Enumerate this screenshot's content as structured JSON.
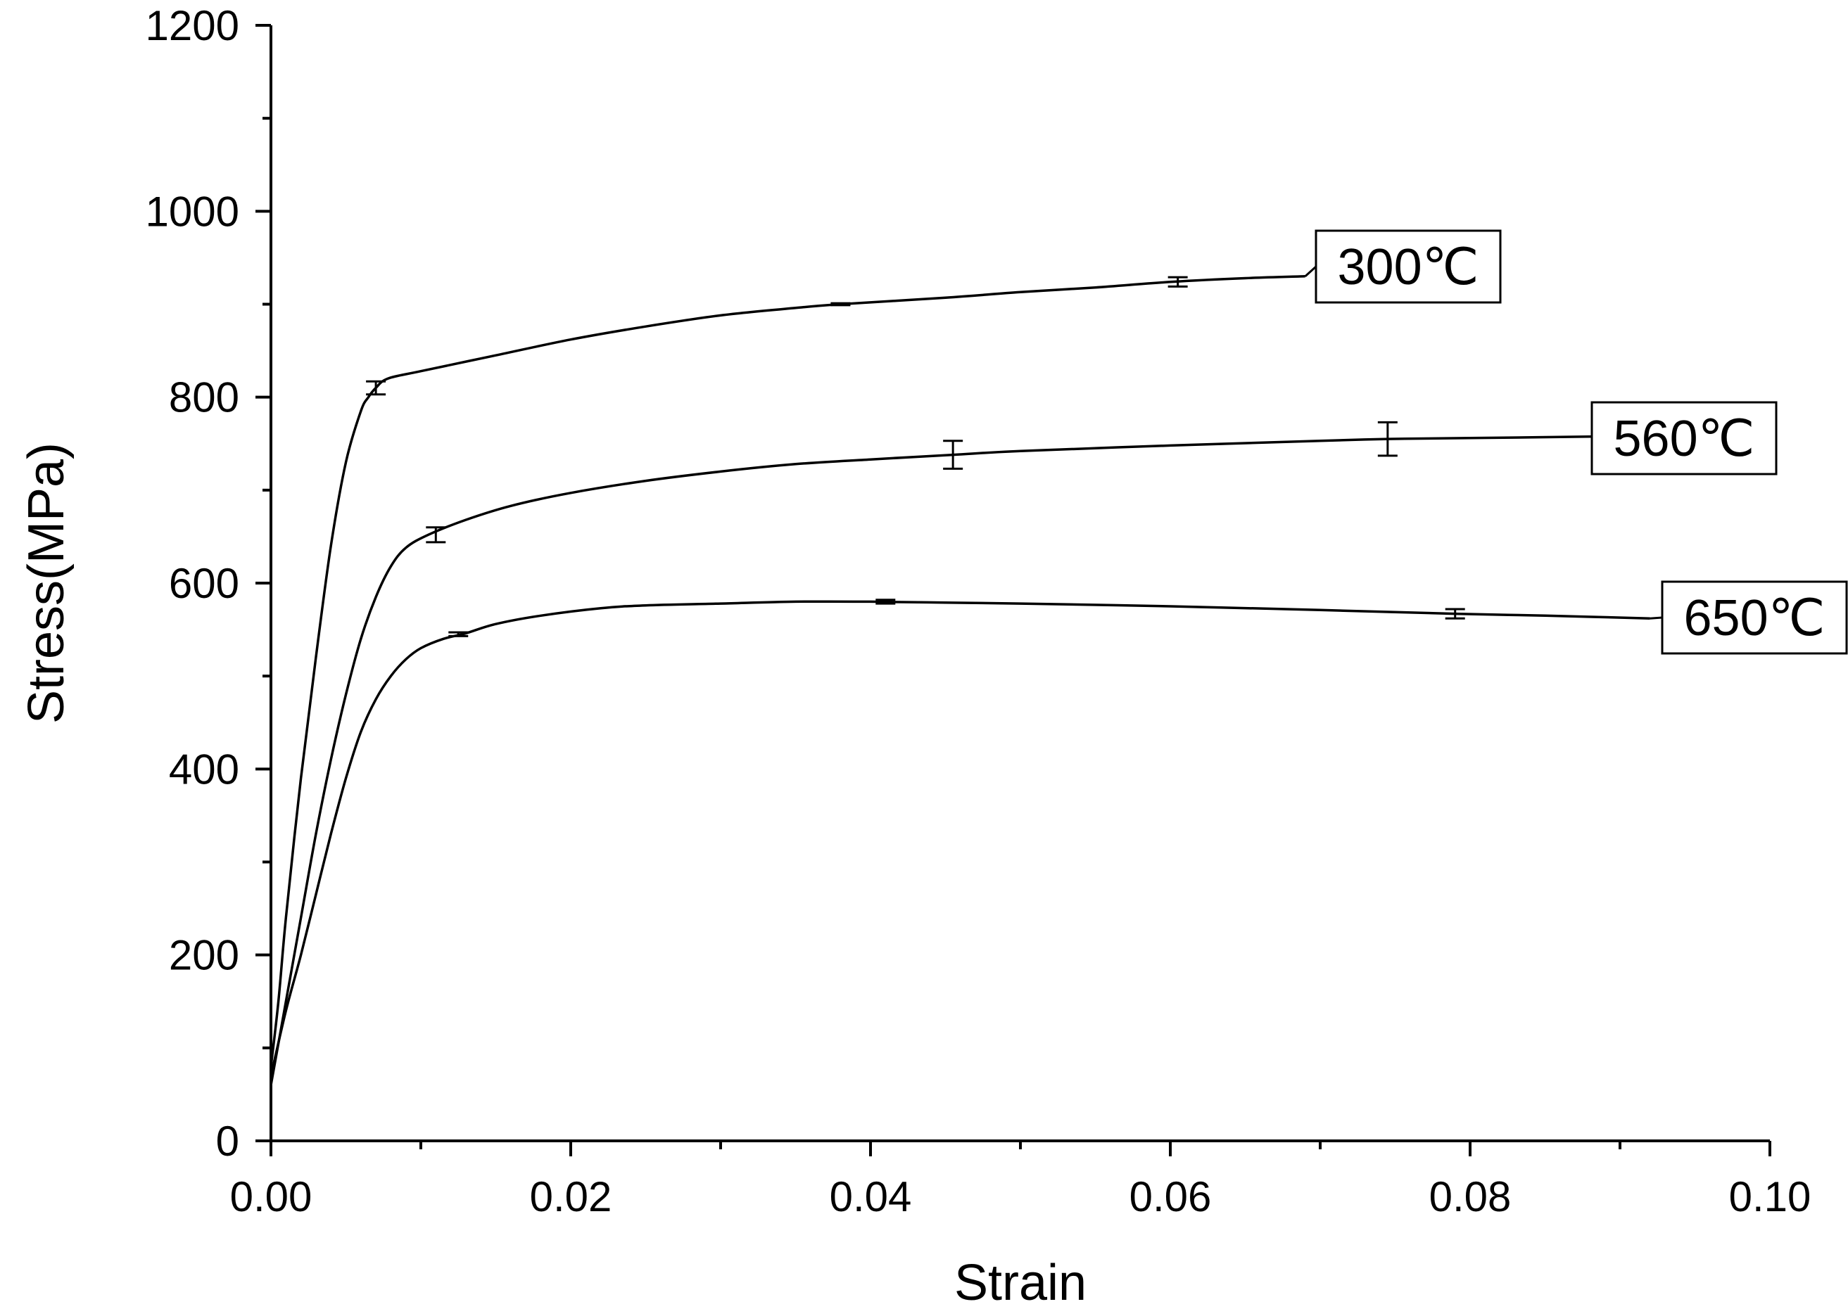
{
  "chart_data": {
    "type": "line",
    "xlabel": "Strain",
    "ylabel": "Stress(MPa)",
    "xlim": [
      0,
      0.1
    ],
    "ylim": [
      0,
      1200
    ],
    "x_ticks": [
      0,
      0.02,
      0.04,
      0.06,
      0.08,
      0.1
    ],
    "x_tick_labels": [
      "0.00",
      "0.02",
      "0.04",
      "0.06",
      "0.08",
      "0.10"
    ],
    "y_ticks": [
      0,
      200,
      400,
      600,
      800,
      1000,
      1200
    ],
    "y_tick_labels": [
      "0",
      "200",
      "400",
      "600",
      "800",
      "1000",
      "1200"
    ],
    "grid": false,
    "legend": "inline-labels",
    "series": [
      {
        "name": "300℃",
        "x": [
          0,
          0.0005,
          0.001,
          0.002,
          0.003,
          0.004,
          0.005,
          0.006,
          0.0065,
          0.007,
          0.0078,
          0.01,
          0.015,
          0.02,
          0.025,
          0.03,
          0.035,
          0.038,
          0.045,
          0.05,
          0.055,
          0.06,
          0.065,
          0.069
        ],
        "y": [
          80,
          150,
          240,
          390,
          520,
          640,
          730,
          785,
          800,
          810,
          820,
          828,
          845,
          862,
          876,
          888,
          896,
          900,
          907,
          913,
          918,
          924,
          928,
          930
        ],
        "error_bars": [
          {
            "x": 0.007,
            "y": 810,
            "err": 7
          },
          {
            "x": 0.038,
            "y": 900,
            "err": 1
          },
          {
            "x": 0.0605,
            "y": 924,
            "err": 5
          }
        ]
      },
      {
        "name": "560℃",
        "x": [
          0,
          0.001,
          0.002,
          0.003,
          0.004,
          0.005,
          0.006,
          0.007,
          0.008,
          0.009,
          0.0105,
          0.013,
          0.016,
          0.02,
          0.025,
          0.03,
          0.035,
          0.04,
          0.0455,
          0.05,
          0.06,
          0.07,
          0.0745,
          0.08,
          0.09
        ],
        "y": [
          60,
          150,
          240,
          330,
          410,
          480,
          540,
          585,
          618,
          638,
          652,
          668,
          683,
          697,
          710,
          720,
          728,
          733,
          738,
          742,
          748,
          753,
          755,
          756,
          758
        ],
        "error_bars": [
          {
            "x": 0.011,
            "y": 652,
            "err": 8
          },
          {
            "x": 0.0455,
            "y": 738,
            "err": 15
          },
          {
            "x": 0.0745,
            "y": 755,
            "err": 18
          }
        ]
      },
      {
        "name": "650℃",
        "x": [
          0,
          0.001,
          0.002,
          0.003,
          0.004,
          0.005,
          0.006,
          0.007,
          0.008,
          0.009,
          0.01,
          0.0115,
          0.013,
          0.015,
          0.018,
          0.022,
          0.025,
          0.03,
          0.035,
          0.04,
          0.045,
          0.05,
          0.06,
          0.07,
          0.079,
          0.085,
          0.092
        ],
        "y": [
          70,
          140,
          200,
          265,
          330,
          390,
          440,
          475,
          500,
          518,
          530,
          540,
          546,
          556,
          565,
          573,
          576,
          578,
          580,
          580,
          579,
          578,
          575,
          571,
          567,
          565,
          562
        ],
        "error_bars": [
          {
            "x": 0.0125,
            "y": 545,
            "err": 2
          },
          {
            "x": 0.041,
            "y": 580,
            "err": 2
          },
          {
            "x": 0.079,
            "y": 567,
            "err": 5
          }
        ]
      }
    ]
  }
}
